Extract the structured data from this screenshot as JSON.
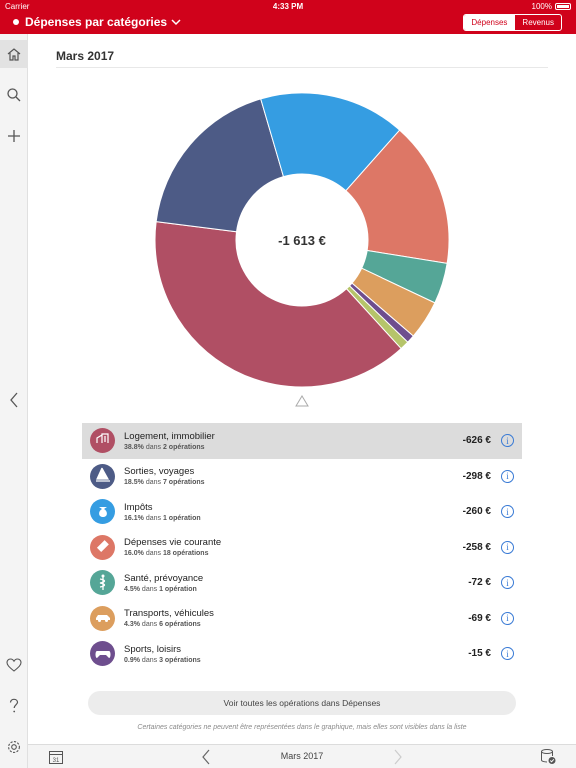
{
  "status_bar": {
    "carrier": "Carrier",
    "time": "4:33 PM",
    "battery": "100%"
  },
  "nav": {
    "title": "Dépenses par catégories",
    "segments": [
      "Dépenses",
      "Revenus"
    ],
    "active_segment": "Dépenses"
  },
  "sidebar": {
    "items": [
      "home-icon",
      "search-icon",
      "plus-icon",
      "chevron-left-icon",
      "heart-icon",
      "question-icon",
      "gear-icon"
    ]
  },
  "main": {
    "month": "Mars 2017",
    "total": "-1 613 €",
    "categories": [
      {
        "name": "Logement, immobilier",
        "percent": "38.8%",
        "dans": "dans",
        "ops": "2 opérations",
        "amount": "-626 €",
        "color": "#b04f64",
        "icon": "house-icon"
      },
      {
        "name": "Sorties, voyages",
        "percent": "18.5%",
        "dans": "dans",
        "ops": "7 opérations",
        "amount": "-298 €",
        "color": "#4d5b86",
        "icon": "sailboat-icon"
      },
      {
        "name": "Impôts",
        "percent": "16.1%",
        "dans": "dans",
        "ops": "1 opération",
        "amount": "-260 €",
        "color": "#359de2",
        "icon": "money-bag-icon"
      },
      {
        "name": "Dépenses vie courante",
        "percent": "16.0%",
        "dans": "dans",
        "ops": "18 opérations",
        "amount": "-258 €",
        "color": "#dd7766",
        "icon": "ticket-icon"
      },
      {
        "name": "Santé, prévoyance",
        "percent": "4.5%",
        "dans": "dans",
        "ops": "1 opération",
        "amount": "-72 €",
        "color": "#55a697",
        "icon": "caduceus-icon"
      },
      {
        "name": "Transports, véhicules",
        "percent": "4.3%",
        "dans": "dans",
        "ops": "6 opérations",
        "amount": "-69 €",
        "color": "#dc9e5e",
        "icon": "car-icon"
      },
      {
        "name": "Sports, loisirs",
        "percent": "0.9%",
        "dans": "dans",
        "ops": "3 opérations",
        "amount": "-15 €",
        "color": "#6e4e8e",
        "icon": "gamepad-icon"
      }
    ],
    "all_button": "Voir toutes les opérations dans Dépenses",
    "note": "Certaines catégories ne peuvent être représentées dans le graphique, mais elles sont visibles dans la liste"
  },
  "bottom": {
    "period": "Mars 2017",
    "calendar_day": "31"
  },
  "chart_data": {
    "type": "pie",
    "title": "",
    "slices": [
      {
        "label": "Dépenses vie courante",
        "value": 16.0,
        "color": "#dd7766"
      },
      {
        "label": "Santé, prévoyance",
        "value": 4.5,
        "color": "#55a697"
      },
      {
        "label": "Transports, véhicules",
        "value": 4.3,
        "color": "#dc9e5e"
      },
      {
        "label": "Sports, loisirs",
        "value": 0.9,
        "color": "#6e4e8e"
      },
      {
        "label": "",
        "value": 1.0,
        "color": "#b6c46a"
      },
      {
        "label": "Logement, immobilier",
        "value": 38.8,
        "color": "#b04f64"
      },
      {
        "label": "Sorties, voyages",
        "value": 18.5,
        "color": "#4d5b86"
      },
      {
        "label": "Impôts",
        "value": 16.1,
        "color": "#359de2"
      }
    ]
  }
}
